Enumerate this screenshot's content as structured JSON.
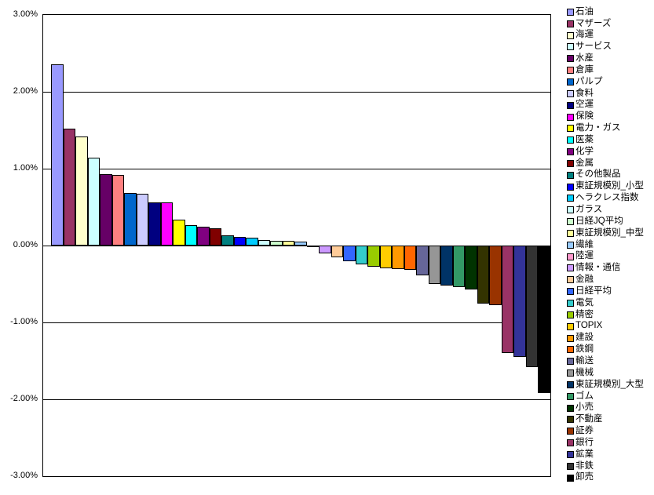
{
  "chart_data": {
    "type": "bar",
    "title": "",
    "xlabel": "",
    "ylabel": "",
    "unit": "%",
    "ylim": [
      -3,
      3
    ],
    "grid": true,
    "legend_position": "right",
    "background": "#FFFFFF",
    "bar_border_color": "#000000",
    "y_ticks": [
      {
        "value": 3,
        "label": "3.00%"
      },
      {
        "value": 2,
        "label": "2.00%"
      },
      {
        "value": 1,
        "label": "1.00%"
      },
      {
        "value": 0,
        "label": "0.00%"
      },
      {
        "value": -1,
        "label": "-1.00%"
      },
      {
        "value": -2,
        "label": "-2.00%"
      },
      {
        "value": -3,
        "label": "-3.00%"
      }
    ],
    "categories": [
      "石油",
      "マザーズ",
      "海運",
      "サービス",
      "水産",
      "倉庫",
      "パルプ",
      "食料",
      "空運",
      "保険",
      "電力・ガス",
      "医薬",
      "化学",
      "金属",
      "その他製品",
      "東証規模別_小型",
      "ヘラクレス指数",
      "ガラス",
      "日経JQ平均",
      "東証規模別_中型",
      "繊維",
      "陸運",
      "情報・通信",
      "金融",
      "日経平均",
      "電気",
      "精密",
      "TOPIX",
      "建設",
      "鉄鋼",
      "輸送",
      "機械",
      "東証規模別_大型",
      "ゴム",
      "小売",
      "不動産",
      "証券",
      "銀行",
      "鉱業",
      "非鉄",
      "卸売"
    ],
    "values": [
      2.36,
      1.52,
      1.42,
      1.14,
      0.93,
      0.92,
      0.68,
      0.67,
      0.56,
      0.56,
      0.34,
      0.27,
      0.24,
      0.22,
      0.13,
      0.11,
      0.1,
      0.07,
      0.06,
      0.06,
      0.05,
      -0.02,
      -0.1,
      -0.15,
      -0.2,
      -0.24,
      -0.28,
      -0.3,
      -0.31,
      -0.32,
      -0.39,
      -0.5,
      -0.52,
      -0.54,
      -0.57,
      -0.76,
      -0.78,
      -1.4,
      -1.45,
      -1.58,
      -1.92
    ],
    "colors": [
      "#9999FF",
      "#993366",
      "#FFFFCC",
      "#CCFFFF",
      "#660066",
      "#FF8080",
      "#0066CC",
      "#CCCCFF",
      "#000080",
      "#FF00FF",
      "#FFFF00",
      "#00FFFF",
      "#800080",
      "#800000",
      "#008080",
      "#0000FF",
      "#00CCFF",
      "#CCFFFF",
      "#CCFFCC",
      "#FFFF99",
      "#99CCFF",
      "#FF99CC",
      "#CC99FF",
      "#FFCC99",
      "#3366FF",
      "#33CCCC",
      "#99CC00",
      "#FFCC00",
      "#FF9900",
      "#FF6600",
      "#666699",
      "#969696",
      "#003366",
      "#339966",
      "#003300",
      "#333300",
      "#993300",
      "#993366",
      "#333399",
      "#333333",
      "#000000"
    ]
  }
}
